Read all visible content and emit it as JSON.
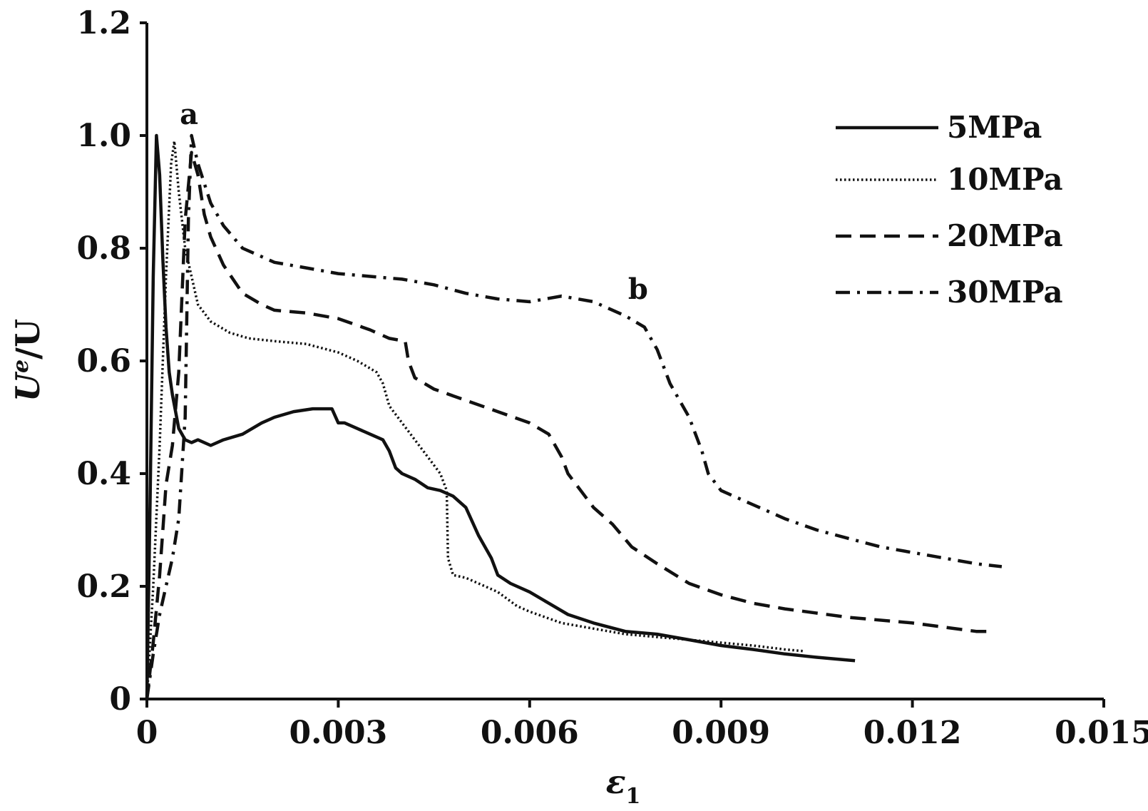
{
  "chart_data": {
    "type": "line",
    "title": "",
    "xlabel": "ε",
    "xlabel_sub": "1",
    "ylabel_main": "U",
    "ylabel_sup": "e",
    "ylabel_rest": "/U",
    "xlim": [
      0,
      0.015
    ],
    "ylim": [
      0,
      1.2
    ],
    "xticks": [
      0,
      0.003,
      0.006,
      0.009,
      0.012,
      0.015
    ],
    "xtick_labels": [
      "0",
      "0.003",
      "0.006",
      "0.009",
      "0.012",
      "0.015"
    ],
    "yticks": [
      0,
      0.2,
      0.4,
      0.6,
      0.8,
      1.0,
      1.2
    ],
    "ytick_labels": [
      "0",
      "0.2",
      "0.4",
      "0.6",
      "0.8",
      "1.0",
      "1.2"
    ],
    "grid": false,
    "legend_position": "top-right",
    "annotations": [
      {
        "text": "a",
        "x": 0.00066,
        "y": 1.02
      },
      {
        "text": "b",
        "x": 0.0077,
        "y": 0.71
      }
    ],
    "series": [
      {
        "name": "5MPa",
        "style": "solid",
        "x": [
          0,
          5e-05,
          0.0001,
          0.00015,
          0.0002,
          0.00025,
          0.0003,
          0.00035,
          0.0004,
          0.0005,
          0.0006,
          0.0007,
          0.0008,
          0.001,
          0.0012,
          0.0015,
          0.0018,
          0.002,
          0.0023,
          0.0026,
          0.0029,
          0.003,
          0.0031,
          0.0033,
          0.0035,
          0.0037,
          0.0038,
          0.0039,
          0.004,
          0.0042,
          0.0044,
          0.0046,
          0.0048,
          0.005,
          0.0052,
          0.0054,
          0.0055,
          0.0057,
          0.006,
          0.0063,
          0.0066,
          0.007,
          0.0075,
          0.008,
          0.0085,
          0.009,
          0.0095,
          0.01,
          0.0105,
          0.011,
          0.0111
        ],
        "values": [
          0.0,
          0.35,
          0.75,
          1.0,
          0.93,
          0.78,
          0.66,
          0.58,
          0.54,
          0.48,
          0.46,
          0.455,
          0.46,
          0.45,
          0.46,
          0.47,
          0.49,
          0.5,
          0.51,
          0.515,
          0.515,
          0.49,
          0.49,
          0.48,
          0.47,
          0.46,
          0.44,
          0.41,
          0.4,
          0.39,
          0.375,
          0.37,
          0.36,
          0.34,
          0.29,
          0.25,
          0.22,
          0.205,
          0.19,
          0.17,
          0.15,
          0.135,
          0.12,
          0.115,
          0.105,
          0.095,
          0.088,
          0.08,
          0.074,
          0.069,
          0.068
        ]
      },
      {
        "name": "10MPa",
        "style": "dotted",
        "x": [
          0,
          0.0001,
          0.0002,
          0.0003,
          0.00038,
          0.00043,
          0.0005,
          0.0006,
          0.0007,
          0.0008,
          0.001,
          0.0013,
          0.0016,
          0.002,
          0.0025,
          0.003,
          0.0033,
          0.0036,
          0.0037,
          0.0038,
          0.004,
          0.0042,
          0.0044,
          0.0046,
          0.0047,
          0.00472,
          0.0048,
          0.005,
          0.0053,
          0.0055,
          0.0058,
          0.006,
          0.0065,
          0.007,
          0.0075,
          0.008,
          0.0085,
          0.009,
          0.0095,
          0.01,
          0.0103
        ],
        "values": [
          0.0,
          0.2,
          0.45,
          0.75,
          0.95,
          0.99,
          0.9,
          0.8,
          0.75,
          0.7,
          0.67,
          0.65,
          0.64,
          0.635,
          0.63,
          0.615,
          0.6,
          0.58,
          0.56,
          0.52,
          0.49,
          0.46,
          0.43,
          0.4,
          0.37,
          0.25,
          0.22,
          0.215,
          0.2,
          0.19,
          0.165,
          0.155,
          0.135,
          0.125,
          0.115,
          0.11,
          0.105,
          0.1,
          0.095,
          0.088,
          0.085
        ]
      },
      {
        "name": "20MPa",
        "style": "dashed",
        "x": [
          0,
          0.0001,
          0.0002,
          0.00025,
          0.0003,
          0.0004,
          0.0005,
          0.0006,
          0.0007,
          0.0008,
          0.0009,
          0.001,
          0.0012,
          0.0015,
          0.0018,
          0.002,
          0.0025,
          0.003,
          0.0035,
          0.0038,
          0.00405,
          0.0041,
          0.0042,
          0.0045,
          0.005,
          0.0055,
          0.006,
          0.0063,
          0.0065,
          0.0066,
          0.0068,
          0.007,
          0.0073,
          0.0076,
          0.008,
          0.0085,
          0.009,
          0.0095,
          0.01,
          0.011,
          0.012,
          0.013,
          0.0132
        ],
        "values": [
          0.0,
          0.1,
          0.22,
          0.3,
          0.38,
          0.45,
          0.58,
          0.85,
          0.97,
          0.93,
          0.86,
          0.82,
          0.77,
          0.72,
          0.7,
          0.69,
          0.685,
          0.675,
          0.655,
          0.64,
          0.635,
          0.6,
          0.57,
          0.55,
          0.53,
          0.51,
          0.49,
          0.47,
          0.43,
          0.4,
          0.37,
          0.34,
          0.31,
          0.27,
          0.24,
          0.205,
          0.185,
          0.17,
          0.16,
          0.145,
          0.135,
          0.12,
          0.12
        ]
      },
      {
        "name": "30MPa",
        "style": "dashdot",
        "x": [
          0,
          0.0001,
          0.0002,
          0.0003,
          0.0004,
          0.0005,
          0.0006,
          0.00065,
          0.0007,
          0.0008,
          0.001,
          0.0012,
          0.0015,
          0.002,
          0.0025,
          0.003,
          0.0035,
          0.004,
          0.0045,
          0.005,
          0.0055,
          0.006,
          0.0065,
          0.007,
          0.0075,
          0.0078,
          0.008,
          0.0082,
          0.0085,
          0.0087,
          0.0088,
          0.009,
          0.0095,
          0.01,
          0.0105,
          0.011,
          0.0115,
          0.012,
          0.0125,
          0.013,
          0.0134
        ],
        "values": [
          0.0,
          0.08,
          0.15,
          0.2,
          0.25,
          0.32,
          0.5,
          0.85,
          1.0,
          0.95,
          0.88,
          0.84,
          0.8,
          0.775,
          0.765,
          0.755,
          0.75,
          0.745,
          0.735,
          0.72,
          0.71,
          0.705,
          0.715,
          0.705,
          0.68,
          0.66,
          0.62,
          0.56,
          0.5,
          0.44,
          0.4,
          0.37,
          0.345,
          0.32,
          0.3,
          0.285,
          0.27,
          0.26,
          0.25,
          0.24,
          0.235
        ]
      }
    ]
  }
}
